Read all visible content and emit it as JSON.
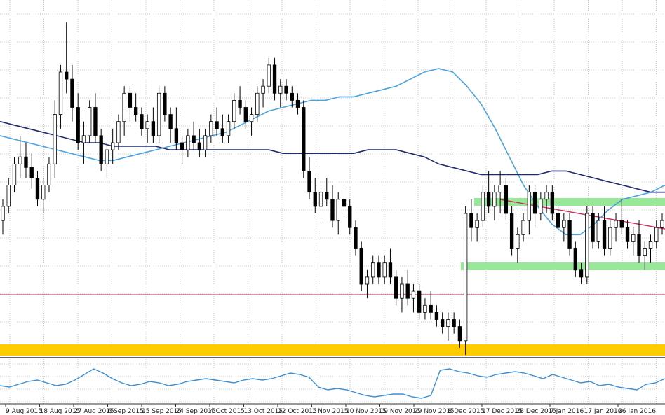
{
  "chart_data": {
    "type": "candlestick",
    "title": "",
    "xlabel": "",
    "ylabel": "",
    "grid": true,
    "x_tick_labels": [
      "9 Aug 2015",
      "18 Aug 2015",
      "27 Aug 2015",
      "6 Sep 2015",
      "15 Sep 2015",
      "24 Sep 2015",
      "4 Oct 2015",
      "13 Oct 2015",
      "22 Oct 2015",
      "1 Nov 2015",
      "10 Nov 2015",
      "19 Nov 2015",
      "29 Nov 2015",
      "8 Dec 2015",
      "17 Dec 2015",
      "28 Dec 2015",
      "7 Jan 2016",
      "17 Jan 2016",
      "26 Jan 2016"
    ],
    "ylim": [
      10,
      110
    ],
    "candles": [
      [
        48,
        54,
        44,
        52
      ],
      [
        52,
        60,
        50,
        58
      ],
      [
        58,
        66,
        56,
        64
      ],
      [
        64,
        72,
        60,
        66
      ],
      [
        66,
        70,
        60,
        63
      ],
      [
        63,
        67,
        57,
        60
      ],
      [
        60,
        62,
        52,
        54
      ],
      [
        54,
        60,
        50,
        58
      ],
      [
        58,
        66,
        56,
        64
      ],
      [
        64,
        82,
        60,
        78
      ],
      [
        78,
        92,
        74,
        90
      ],
      [
        90,
        104,
        84,
        88
      ],
      [
        88,
        92,
        76,
        80
      ],
      [
        80,
        84,
        68,
        70
      ],
      [
        70,
        76,
        64,
        72
      ],
      [
        72,
        82,
        70,
        80
      ],
      [
        80,
        84,
        70,
        72
      ],
      [
        72,
        74,
        62,
        64
      ],
      [
        64,
        70,
        60,
        68
      ],
      [
        68,
        74,
        64,
        70
      ],
      [
        70,
        78,
        68,
        76
      ],
      [
        76,
        86,
        72,
        84
      ],
      [
        84,
        86,
        76,
        80
      ],
      [
        80,
        84,
        76,
        78
      ],
      [
        78,
        80,
        72,
        74
      ],
      [
        74,
        78,
        70,
        76
      ],
      [
        76,
        80,
        70,
        72
      ],
      [
        72,
        86,
        70,
        84
      ],
      [
        84,
        86,
        76,
        78
      ],
      [
        78,
        80,
        70,
        74
      ],
      [
        74,
        80,
        68,
        70
      ],
      [
        70,
        72,
        64,
        68
      ],
      [
        68,
        74,
        66,
        72
      ],
      [
        72,
        76,
        68,
        70
      ],
      [
        70,
        74,
        66,
        68
      ],
      [
        68,
        74,
        66,
        72
      ],
      [
        72,
        78,
        70,
        76
      ],
      [
        76,
        80,
        72,
        74
      ],
      [
        74,
        78,
        70,
        72
      ],
      [
        72,
        78,
        70,
        76
      ],
      [
        76,
        84,
        74,
        82
      ],
      [
        82,
        86,
        78,
        80
      ],
      [
        80,
        82,
        74,
        76
      ],
      [
        76,
        80,
        72,
        78
      ],
      [
        78,
        86,
        76,
        84
      ],
      [
        84,
        88,
        80,
        86
      ],
      [
        86,
        94,
        84,
        92
      ],
      [
        92,
        94,
        82,
        84
      ],
      [
        84,
        88,
        80,
        86
      ],
      [
        86,
        88,
        82,
        84
      ],
      [
        84,
        86,
        80,
        82
      ],
      [
        82,
        84,
        78,
        80
      ],
      [
        80,
        82,
        60,
        62
      ],
      [
        62,
        66,
        54,
        56
      ],
      [
        56,
        60,
        50,
        52
      ],
      [
        52,
        58,
        48,
        56
      ],
      [
        56,
        60,
        52,
        54
      ],
      [
        54,
        58,
        46,
        48
      ],
      [
        48,
        56,
        44,
        54
      ],
      [
        54,
        58,
        50,
        52
      ],
      [
        52,
        54,
        44,
        46
      ],
      [
        46,
        48,
        38,
        40
      ],
      [
        40,
        42,
        28,
        30
      ],
      [
        30,
        34,
        26,
        32
      ],
      [
        32,
        38,
        30,
        36
      ],
      [
        36,
        38,
        30,
        32
      ],
      [
        32,
        38,
        30,
        36
      ],
      [
        36,
        40,
        30,
        32
      ],
      [
        32,
        34,
        24,
        26
      ],
      [
        26,
        32,
        22,
        30
      ],
      [
        30,
        34,
        24,
        26
      ],
      [
        26,
        30,
        22,
        28
      ],
      [
        28,
        30,
        20,
        22
      ],
      [
        22,
        26,
        20,
        24
      ],
      [
        24,
        28,
        20,
        22
      ],
      [
        22,
        24,
        18,
        20
      ],
      [
        20,
        22,
        16,
        18
      ],
      [
        18,
        22,
        14,
        20
      ],
      [
        20,
        22,
        16,
        18
      ],
      [
        18,
        20,
        12,
        14
      ],
      [
        14,
        52,
        10,
        50
      ],
      [
        50,
        54,
        42,
        46
      ],
      [
        46,
        50,
        42,
        48
      ],
      [
        48,
        58,
        46,
        56
      ],
      [
        56,
        62,
        50,
        52
      ],
      [
        52,
        58,
        48,
        56
      ],
      [
        56,
        62,
        50,
        58
      ],
      [
        58,
        60,
        48,
        50
      ],
      [
        50,
        52,
        38,
        40
      ],
      [
        40,
        46,
        36,
        44
      ],
      [
        44,
        50,
        42,
        48
      ],
      [
        48,
        58,
        44,
        56
      ],
      [
        56,
        58,
        46,
        50
      ],
      [
        50,
        56,
        48,
        54
      ],
      [
        54,
        58,
        50,
        56
      ],
      [
        56,
        58,
        48,
        50
      ],
      [
        50,
        52,
        44,
        46
      ],
      [
        46,
        50,
        42,
        48
      ],
      [
        48,
        50,
        38,
        40
      ],
      [
        40,
        42,
        32,
        34
      ],
      [
        34,
        36,
        30,
        32
      ],
      [
        32,
        52,
        30,
        50
      ],
      [
        50,
        52,
        40,
        42
      ],
      [
        42,
        50,
        40,
        48
      ],
      [
        48,
        52,
        38,
        40
      ],
      [
        40,
        48,
        38,
        46
      ],
      [
        46,
        50,
        42,
        48
      ],
      [
        48,
        54,
        44,
        46
      ],
      [
        46,
        48,
        40,
        42
      ],
      [
        42,
        46,
        38,
        44
      ],
      [
        44,
        48,
        36,
        38
      ],
      [
        38,
        42,
        34,
        40
      ],
      [
        40,
        44,
        36,
        42
      ],
      [
        42,
        48,
        40,
        46
      ],
      [
        46,
        50,
        44,
        48
      ]
    ],
    "series": [
      {
        "values": [
          72,
          71,
          70,
          69,
          68,
          67,
          66,
          65,
          65,
          66,
          67,
          68,
          69,
          70,
          71,
          72,
          73,
          75,
          77,
          79,
          80,
          81,
          82,
          82,
          83,
          83,
          84,
          85,
          86,
          88,
          90,
          91,
          90,
          86,
          81,
          74,
          66,
          58,
          52,
          47,
          44,
          44,
          47,
          51,
          54,
          55,
          56,
          58
        ]
      },
      {
        "values": [
          76,
          75,
          74,
          73,
          72,
          71,
          70,
          70,
          69,
          69,
          69,
          69,
          68,
          68,
          68,
          68,
          68,
          68,
          68,
          68,
          67,
          67,
          67,
          67,
          67,
          67,
          68,
          68,
          68,
          67,
          66,
          64,
          63,
          62,
          61,
          61,
          61,
          61,
          61,
          62,
          62,
          61,
          60,
          59,
          58,
          57,
          56,
          56
        ]
      },
      {
        "values": [
          -3,
          -4,
          -2,
          0,
          1,
          -1,
          -3,
          -2,
          1,
          5,
          9,
          6,
          2,
          -1,
          -3,
          -2,
          0,
          -1,
          -3,
          -2,
          0,
          1,
          2,
          1,
          0,
          -1,
          1,
          2,
          1,
          2,
          4,
          6,
          5,
          3,
          -4,
          -6,
          -5,
          -6,
          -8,
          -10,
          -11,
          -10,
          -9,
          -9,
          -11,
          -12,
          -10,
          8,
          9,
          7,
          6,
          4,
          3,
          5,
          6,
          7,
          6,
          4,
          2,
          5,
          3,
          1,
          -1,
          0,
          -3,
          -2,
          -4,
          -5,
          -6,
          -2,
          -1,
          2
        ]
      }
    ]
  }
}
